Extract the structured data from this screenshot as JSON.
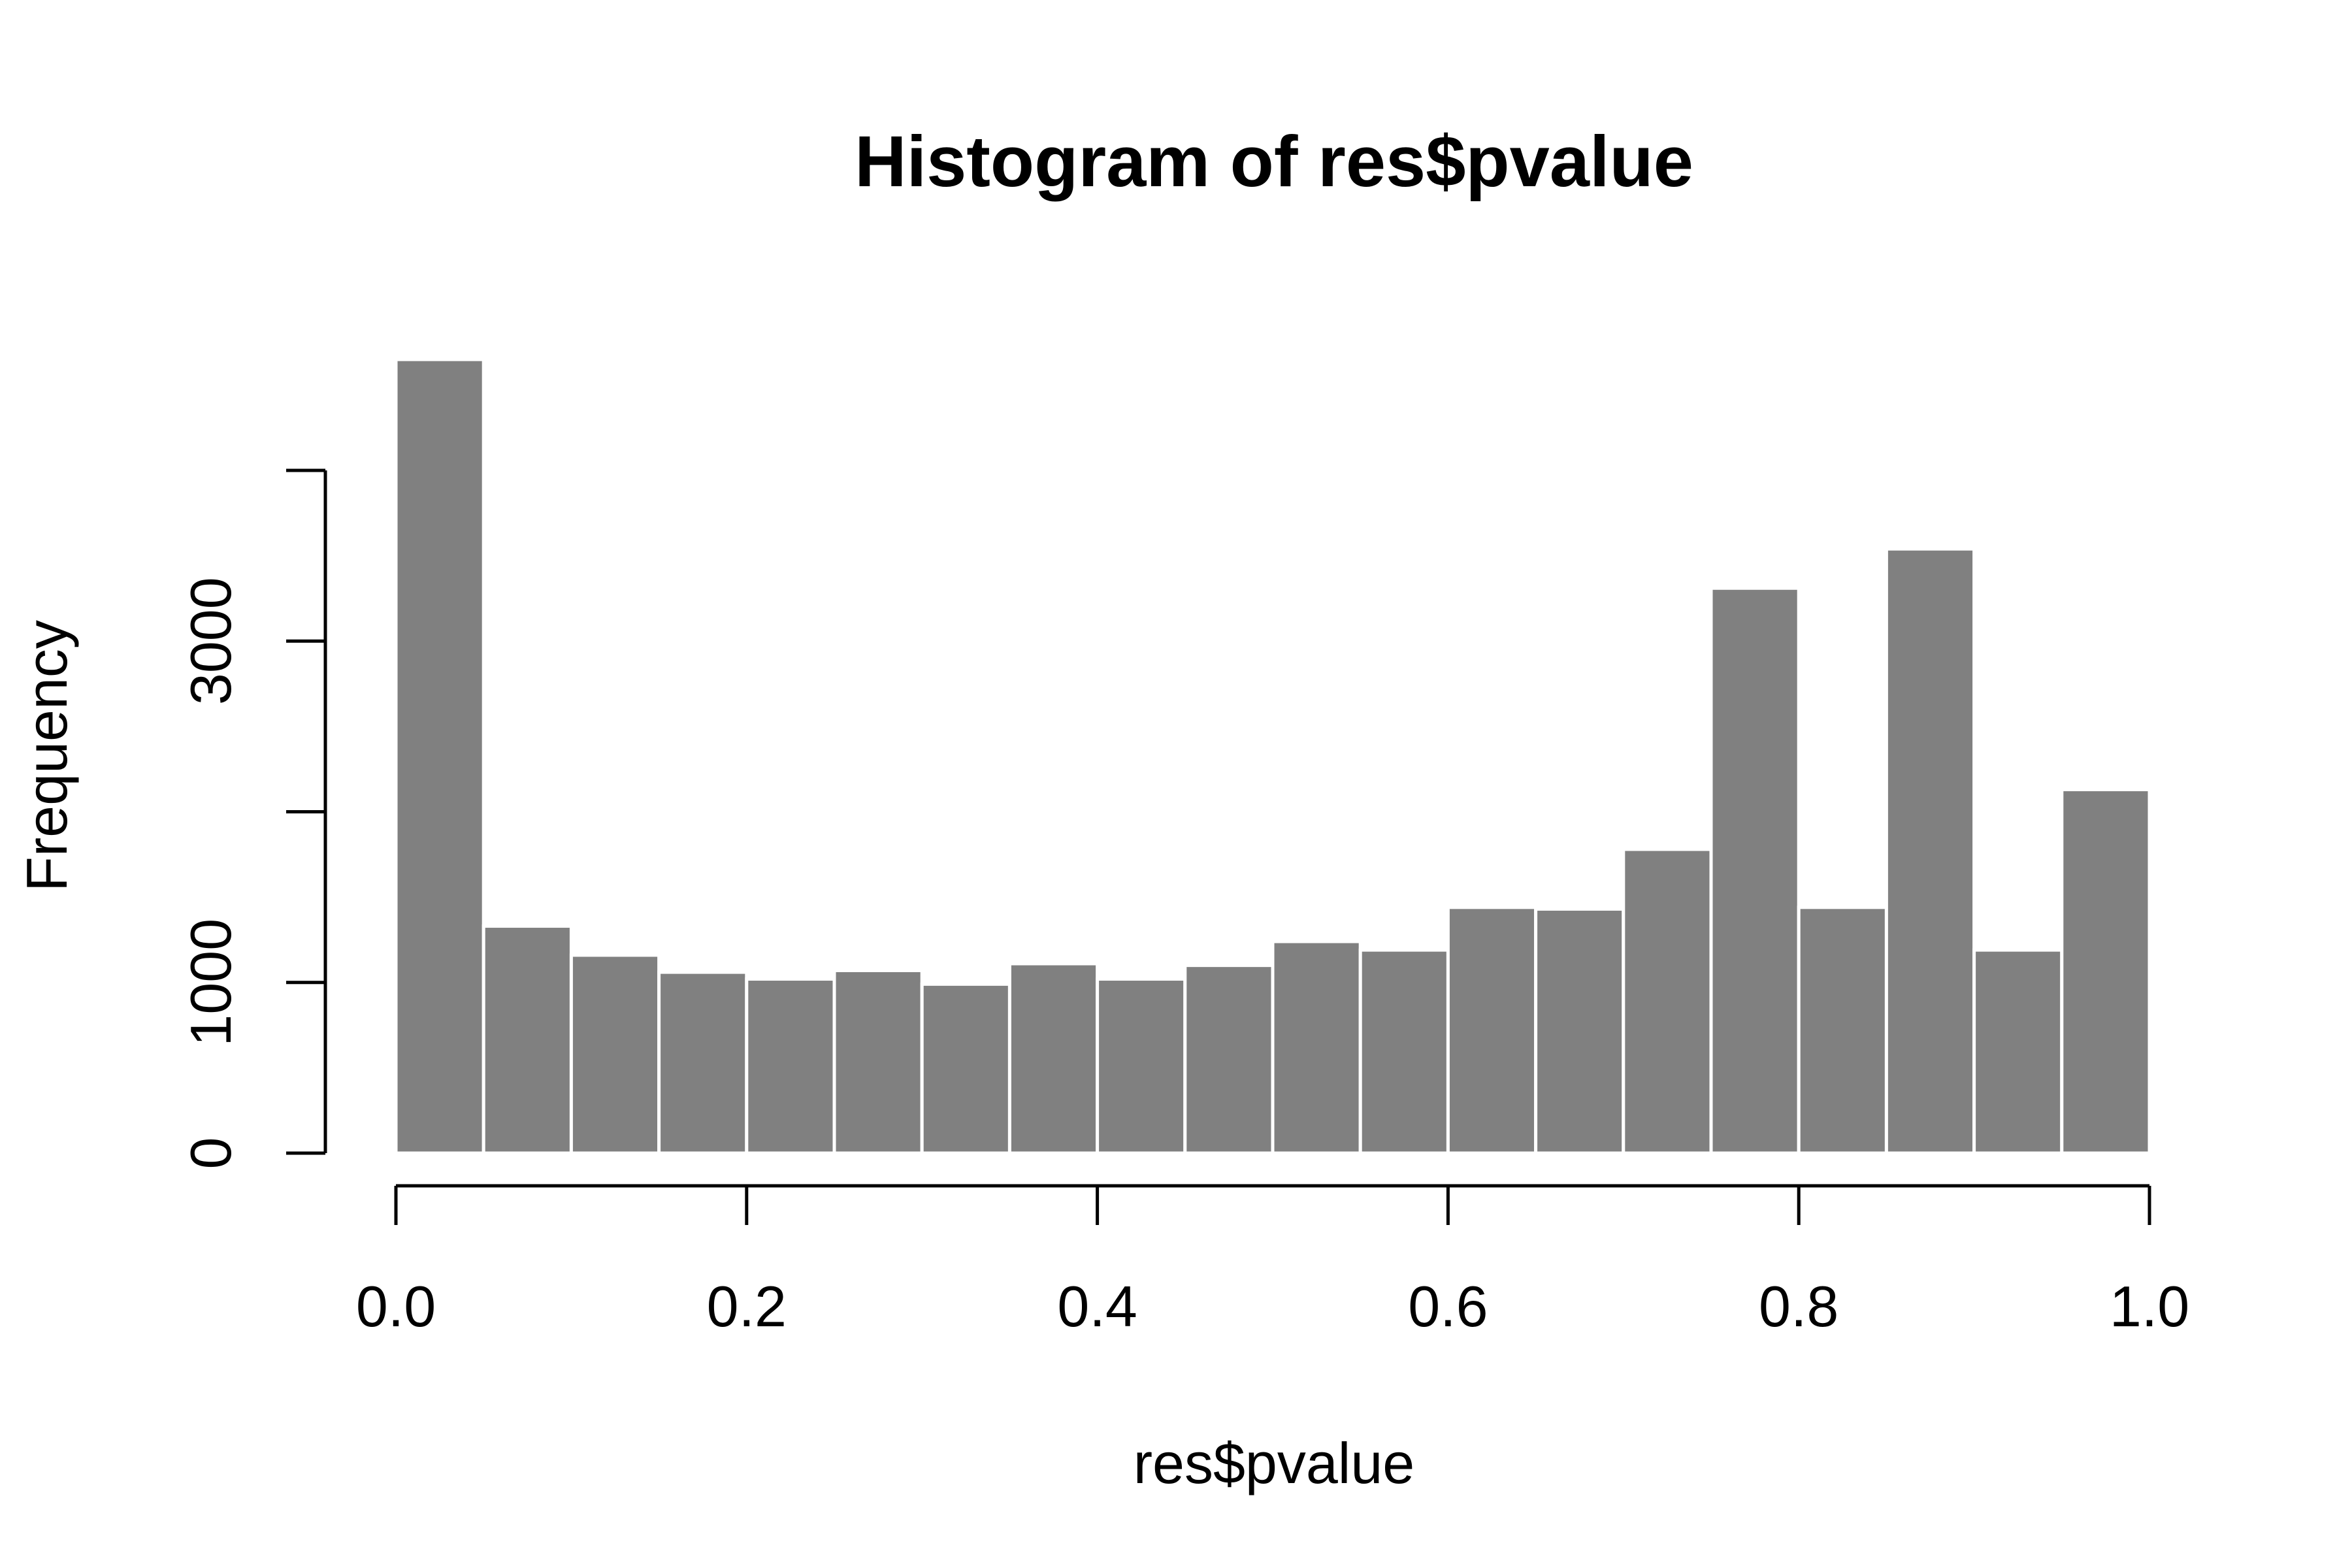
{
  "chart_data": {
    "type": "bar",
    "title": "Histogram of res$pvalue",
    "xlabel": "res$pvalue",
    "ylabel": "Frequency",
    "bin_edges": [
      0.0,
      0.05,
      0.1,
      0.15,
      0.2,
      0.25,
      0.3,
      0.35,
      0.4,
      0.45,
      0.5,
      0.55,
      0.6,
      0.65,
      0.7,
      0.75,
      0.8,
      0.85,
      0.9,
      0.95,
      1.0
    ],
    "values": [
      4650,
      1330,
      1160,
      1060,
      1020,
      1070,
      990,
      1110,
      1020,
      1100,
      1240,
      1190,
      1440,
      1430,
      1780,
      3310,
      1440,
      3540,
      1190,
      2130
    ],
    "xlim": [
      0.0,
      1.0
    ],
    "ylim": [
      0,
      4000
    ],
    "x_ticks": [
      {
        "value": 0.0,
        "label": "0.0"
      },
      {
        "value": 0.2,
        "label": "0.2"
      },
      {
        "value": 0.4,
        "label": "0.4"
      },
      {
        "value": 0.6,
        "label": "0.6"
      },
      {
        "value": 0.8,
        "label": "0.8"
      },
      {
        "value": 1.0,
        "label": "1.0"
      }
    ],
    "y_ticks": [
      {
        "value": 0,
        "label": "0"
      },
      {
        "value": 1000,
        "label": "1000"
      },
      {
        "value": 2000,
        "label": ""
      },
      {
        "value": 3000,
        "label": "3000"
      },
      {
        "value": 4000,
        "label": ""
      }
    ],
    "bar_color": "#808080",
    "bar_border_color": "#ffffff",
    "grid": false
  }
}
